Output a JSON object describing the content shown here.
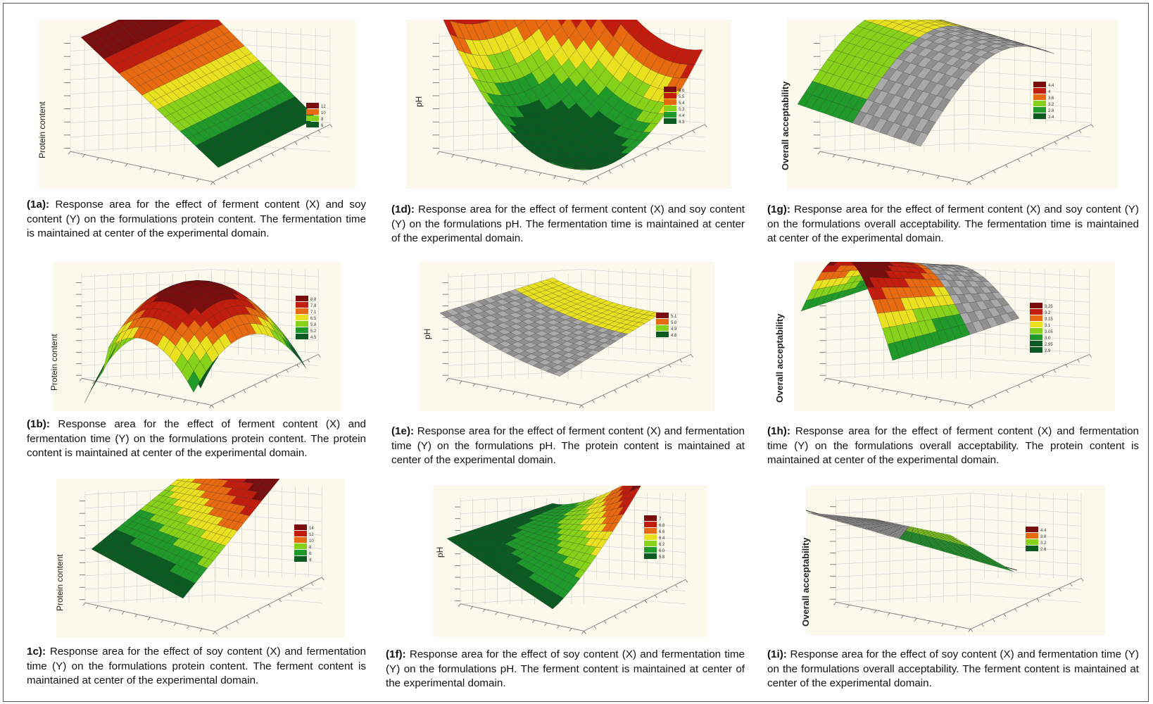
{
  "figures": [
    {
      "id": "1a",
      "y_label": "Protein content",
      "caption_label": "(1a)",
      "caption_text": "Response area for the effect of ferment content (X) and soy content (Y) on the formulations protein content. The fermentation time is maintained at center of the experimental domain.",
      "legend_values": [
        "12",
        "10",
        "8",
        "6"
      ]
    },
    {
      "id": "1b",
      "y_label": "Protein content",
      "caption_label": "(1b)",
      "caption_text": "Response area for the effect of ferment content (X) and fermentation time (Y) on the formulations protein content. The protein content is maintained at center of the experimental domain.",
      "legend_values": [
        "8.8",
        "7.8",
        "7.1",
        "6.5",
        "5.8",
        "5.2",
        "4.5"
      ]
    },
    {
      "id": "1c",
      "y_label": "Protein content",
      "caption_label": "1c)",
      "caption_text": "Response area for the effect of soy content (X) and fermentation time (Y) on the formulations protein content. The ferment content is maintained at center of the experimental domain.",
      "legend_values": [
        "14",
        "12",
        "10",
        "8",
        "6",
        "4"
      ]
    },
    {
      "id": "1d",
      "y_label": "pH",
      "caption_label": "(1d)",
      "caption_text": "Response area for the effect of ferment content (X) and soy content (Y) on the formulations pH. The fermentation time is maintained at center of the experimental domain.",
      "legend_values": [
        "5.6",
        "5.5",
        "5.4",
        "5.3",
        "4.4",
        "4.3"
      ]
    },
    {
      "id": "1e",
      "y_label": "pH",
      "caption_label": "(1e)",
      "caption_text": "Response area for the effect of ferment content (X) and fermentation time (Y) on the formulations pH. The protein content is maintained at center of the experimental domain.",
      "legend_values": [
        "5.1",
        "5.0",
        "4.9",
        "4.8"
      ]
    },
    {
      "id": "1f",
      "y_label": "pH",
      "caption_label": "(1f)",
      "caption_text": "Response area for the effect of soy content (X) and fermentation time (Y) on the formulations pH. The ferment content is maintained at center of the experimental domain.",
      "legend_values": [
        "7",
        "6.8",
        "6.6",
        "6.4",
        "6.2",
        "6.0",
        "5.8"
      ]
    },
    {
      "id": "1g",
      "y_label": "Overall acceptability",
      "caption_label": "(1g)",
      "caption_text": "Response area for the effect of ferment content (X) and soy content (Y) on the formulations overall acceptability. The fermentation time is maintained at center of the experimental domain.",
      "legend_values": [
        "4.4",
        "4",
        "3.6",
        "3.2",
        "2.8",
        "2.4"
      ]
    },
    {
      "id": "1h",
      "y_label": "Overall acceptability",
      "caption_label": "(1h)",
      "caption_text": "Response area for the effect of ferment content (X) and fermentation time (Y) on the formulations overall acceptability. The protein content is maintained at center of the experimental domain.",
      "legend_values": [
        "3.25",
        "3.2",
        "3.15",
        "3.1",
        "3.05",
        "3.0",
        "2.95",
        "2.9"
      ]
    },
    {
      "id": "1i",
      "y_label": "Overall acceptability",
      "caption_label": "(1i)",
      "caption_text": "Response area for the effect of soy content (X) and fermentation time (Y) on the formulations overall acceptability. The ferment content is maintained at center of the experimental domain.",
      "legend_values": [
        "4.4",
        "3.8",
        "3.2",
        "2.6"
      ]
    }
  ],
  "colors": {
    "dark_red": "#7a0d0d",
    "red": "#c21c0f",
    "orange": "#e86a10",
    "yellow": "#e9e020",
    "light_green": "#86d21a",
    "green": "#1f9a2a",
    "dark_green": "#0b5a22",
    "gray": "#9a9a9a",
    "plot_bg": "#fbf8ec"
  }
}
